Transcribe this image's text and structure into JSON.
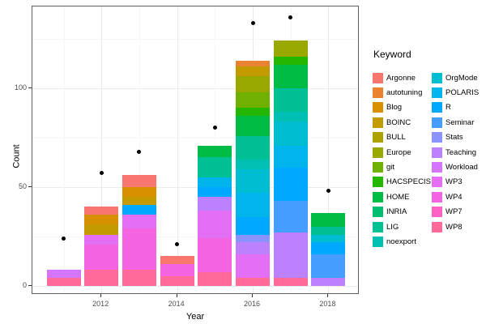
{
  "chart_data": {
    "type": "bar",
    "subtype": "stacked_bar_with_points",
    "title": "",
    "xlabel": "Year",
    "ylabel": "Count",
    "legend_title": "Keyword",
    "legend_position": "right",
    "grid": true,
    "xlim": [
      2010.2,
      2018.8
    ],
    "ylim": [
      -4.5,
      141.5
    ],
    "y_major_ticks": [
      0,
      50,
      100
    ],
    "y_tick_labels": [
      "0",
      "50",
      "100"
    ],
    "y_minor_ticks": [
      25,
      75,
      125
    ],
    "x_major_ticks": [
      2012,
      2014,
      2016,
      2018
    ],
    "x_tick_labels": [
      "2012",
      "2014",
      "2016",
      "2018"
    ],
    "x_minor_ticks": [
      2011,
      2013,
      2015,
      2017
    ],
    "years": [
      2011,
      2012,
      2013,
      2014,
      2015,
      2016,
      2017,
      2018
    ],
    "keywords": [
      "Argonne",
      "autotuning",
      "Blog",
      "BOINC",
      "BULL",
      "Europe",
      "git",
      "HACSPECIS",
      "HOME",
      "INRIA",
      "LIG",
      "noexport",
      "OrgMode",
      "POLARIS",
      "R",
      "Seminar",
      "Stats",
      "Teaching",
      "Workload",
      "WP3",
      "WP4",
      "WP7",
      "WP8"
    ],
    "palette": {
      "Argonne": "#F8766D",
      "autotuning": "#EA8331",
      "Blog": "#D89000",
      "BOINC": "#C39B00",
      "BULL": "#ACA300",
      "Europe": "#99A800",
      "git": "#6FB000",
      "HACSPECIS": "#24B700",
      "HOME": "#00BB44",
      "INRIA": "#00BE70",
      "LIG": "#00C094",
      "noexport": "#00C0B4",
      "OrgMode": "#00BDD2",
      "POLARIS": "#00B5EC",
      "R": "#00A9FF",
      "Seminar": "#459DFF",
      "Stats": "#8B93FF",
      "Teaching": "#BC81FF",
      "Workload": "#D575FE",
      "WP3": "#E56EF6",
      "WP4": "#F464E2",
      "WP7": "#FD61C4",
      "WP8": "#FF6A98"
    },
    "stacks_bottom_to_top": {
      "2011": [
        [
          "WP8",
          4
        ],
        [
          "Workload",
          4
        ]
      ],
      "2012": [
        [
          "WP8",
          8
        ],
        [
          "WP4",
          13
        ],
        [
          "WP3",
          5
        ],
        [
          "BOINC",
          5
        ],
        [
          "Blog",
          5
        ],
        [
          "Argonne",
          4
        ]
      ],
      "2013": [
        [
          "WP8",
          8
        ],
        [
          "WP4",
          21
        ],
        [
          "WP3",
          7
        ],
        [
          "R",
          5
        ],
        [
          "BOINC",
          4
        ],
        [
          "Blog",
          5
        ],
        [
          "Argonne",
          6
        ]
      ],
      "2014": [
        [
          "WP8",
          5
        ],
        [
          "WP4",
          6
        ],
        [
          "Argonne",
          4
        ]
      ],
      "2015": [
        [
          "WP8",
          7
        ],
        [
          "WP4",
          17
        ],
        [
          "WP3",
          14
        ],
        [
          "Teaching",
          7
        ],
        [
          "R",
          5
        ],
        [
          "POLARIS",
          5
        ],
        [
          "LIG",
          10
        ],
        [
          "HOME",
          6
        ]
      ],
      "2016": [
        [
          "WP8",
          4
        ],
        [
          "WP3",
          12
        ],
        [
          "Teaching",
          6
        ],
        [
          "Stats",
          4
        ],
        [
          "R",
          9
        ],
        [
          "POLARIS",
          12
        ],
        [
          "OrgMode",
          12
        ],
        [
          "noexport",
          5
        ],
        [
          "LIG",
          12
        ],
        [
          "HOME",
          10
        ],
        [
          "HACSPECIS",
          4
        ],
        [
          "git",
          8
        ],
        [
          "Europe",
          8
        ],
        [
          "BOINC",
          5
        ],
        [
          "autotuning",
          3
        ]
      ],
      "2017": [
        [
          "WP8",
          4
        ],
        [
          "Teaching",
          23
        ],
        [
          "Seminar",
          16
        ],
        [
          "R",
          17
        ],
        [
          "POLARIS",
          11
        ],
        [
          "OrgMode",
          12
        ],
        [
          "noexport",
          5
        ],
        [
          "LIG",
          12
        ],
        [
          "HOME",
          12
        ],
        [
          "HACSPECIS",
          4
        ],
        [
          "Europe",
          8
        ]
      ],
      "2018": [
        [
          "Teaching",
          4
        ],
        [
          "Seminar",
          12
        ],
        [
          "R",
          6
        ],
        [
          "OrgMode",
          4
        ],
        [
          "LIG",
          4
        ],
        [
          "HOME",
          7
        ]
      ]
    },
    "bar_totals": {
      "2011": 8,
      "2012": 40,
      "2013": 56,
      "2014": 15,
      "2015": 71,
      "2016": 114,
      "2017": 124,
      "2018": 37
    },
    "points": {
      "2011": 24,
      "2012": 57,
      "2013": 68,
      "2014": 21,
      "2015": 80,
      "2016": 133,
      "2017": 136,
      "2018": 48
    }
  },
  "legend": {
    "title": "Keyword",
    "columns": [
      [
        "Argonne",
        "autotuning",
        "Blog",
        "BOINC",
        "BULL",
        "Europe",
        "git",
        "HACSPECIS",
        "HOME",
        "INRIA",
        "LIG",
        "noexport"
      ],
      [
        "OrgMode",
        "POLARIS",
        "R",
        "Seminar",
        "Stats",
        "Teaching",
        "Workload",
        "WP3",
        "WP4",
        "WP7",
        "WP8"
      ]
    ]
  }
}
